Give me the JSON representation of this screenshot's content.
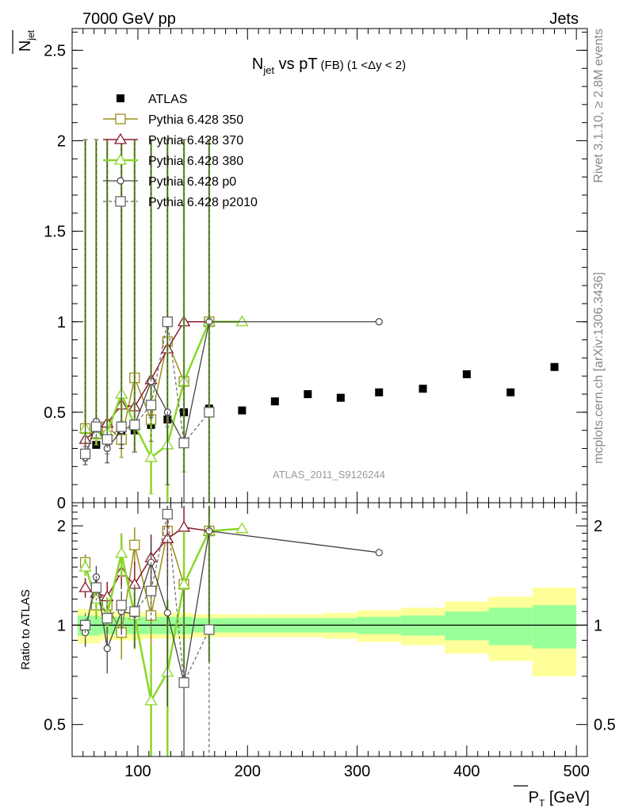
{
  "header": {
    "left": "7000 GeV pp",
    "right": "Jets",
    "side_top": "Rivet 3.1.10, ≥ 2.8M events",
    "side_bottom": "mcplots.cern.ch [arXiv:1306.3436]",
    "watermark": "ATLAS_2011_S9126244"
  },
  "colors": {
    "atlas": "#000000",
    "p350": "#9a8e1c",
    "p370": "#8b1a2b",
    "p380": "#8ad62a",
    "p0": "#444444",
    "p2010": "#666666",
    "band_inner": "#99ff99",
    "band_outer": "#ffff99"
  },
  "chart_data": [
    {
      "type": "scatter",
      "title_main": "N",
      "title_sub": "jet",
      "title_rest": " vs pT",
      "title_small": "(FB) (1 <Δy < 2)",
      "ylabel_main": "N",
      "ylabel_sub": "jet",
      "ylim": [
        0,
        2.62
      ],
      "xlim": [
        40,
        510
      ],
      "yticks": [
        "0.5",
        "1",
        "1.5",
        "2",
        "2.5"
      ],
      "ytick_values": [
        0.5,
        1,
        1.5,
        2,
        2.5
      ],
      "legend": [
        {
          "key": "atlas",
          "label": "ATLAS"
        },
        {
          "key": "p350",
          "label": "Pythia 6.428 350"
        },
        {
          "key": "p370",
          "label": "Pythia 6.428 370"
        },
        {
          "key": "p380",
          "label": "Pythia 6.428 380"
        },
        {
          "key": "p0",
          "label": "Pythia 6.428 p0"
        },
        {
          "key": "p2010",
          "label": "Pythia 6.428 p2010"
        }
      ],
      "series": [
        {
          "key": "atlas",
          "name": "ATLAS",
          "x": [
            52,
            62,
            72,
            85,
            97,
            112,
            127,
            142,
            165,
            195,
            225,
            255,
            285,
            320,
            360,
            400,
            440,
            480
          ],
          "y": [
            0.27,
            0.32,
            0.36,
            0.37,
            0.4,
            0.43,
            0.46,
            0.5,
            0.52,
            0.51,
            0.56,
            0.6,
            0.58,
            0.61,
            0.63,
            0.71,
            0.61,
            0.75
          ]
        },
        {
          "key": "p350",
          "name": "Pythia 6.428 350",
          "x": [
            52,
            62,
            72,
            85,
            97,
            112,
            127,
            142,
            165
          ],
          "y": [
            0.41,
            0.38,
            0.42,
            0.35,
            0.69,
            0.46,
            0.89,
            0.67,
            1.0
          ],
          "err": [
            0.04,
            0.06,
            0.08,
            0.1,
            0.15,
            0.2,
            0.4,
            0.5,
            1.0
          ]
        },
        {
          "key": "p370",
          "name": "Pythia 6.428 370",
          "x": [
            52,
            62,
            72,
            85,
            97,
            112,
            127,
            142,
            165
          ],
          "y": [
            0.35,
            0.4,
            0.44,
            0.54,
            0.53,
            0.68,
            0.85,
            1.0,
            1.0
          ],
          "err": [
            0.04,
            0.06,
            0.08,
            0.1,
            0.15,
            0.2,
            0.4,
            0.5,
            1.0
          ]
        },
        {
          "key": "p380",
          "name": "Pythia 6.428 380",
          "x": [
            52,
            62,
            72,
            85,
            97,
            112,
            127,
            142,
            165,
            195
          ],
          "y": [
            0.41,
            0.38,
            0.39,
            0.6,
            0.43,
            0.25,
            0.32,
            0.67,
            1.0,
            1.0
          ],
          "err": [
            0.04,
            0.06,
            0.08,
            0.15,
            0.15,
            0.2,
            0.35,
            0.5,
            1.0,
            0
          ]
        },
        {
          "key": "p0",
          "name": "Pythia 6.428 p0",
          "x": [
            52,
            62,
            72,
            85,
            97,
            112,
            127,
            142,
            165,
            320
          ],
          "y": [
            0.25,
            0.45,
            0.3,
            0.4,
            0.43,
            0.67,
            0.5,
            0.33,
            1.0,
            1.0
          ],
          "err": [
            0.04,
            0.06,
            0.08,
            0.1,
            0.15,
            0.2,
            0.4,
            0.5,
            1.0,
            0
          ]
        },
        {
          "key": "p2010",
          "name": "Pythia 6.428 p2010",
          "x": [
            52,
            62,
            72,
            85,
            97,
            112,
            127,
            142,
            165
          ],
          "y": [
            0.27,
            0.42,
            0.35,
            0.42,
            0.43,
            0.54,
            1.0,
            0.33,
            0.5
          ],
          "err": [
            0.04,
            0.06,
            0.08,
            0.1,
            0.15,
            0.2,
            0.58,
            0.5,
            1.0
          ]
        }
      ]
    },
    {
      "type": "scatter",
      "ylabel": "Ratio to ATLAS",
      "xlabel_main": "P",
      "xlabel_sub": "T",
      "xlabel_rest": " [GeV]",
      "ylim": [
        0.4,
        2.35
      ],
      "xlim": [
        40,
        510
      ],
      "xticks": [
        "100",
        "200",
        "300",
        "400",
        "500"
      ],
      "xtick_values": [
        100,
        200,
        300,
        400,
        500
      ],
      "yticks": [
        "0.5",
        "1",
        "2"
      ],
      "ytick_values": [
        0.5,
        1,
        2
      ],
      "band_edges": [
        45,
        58,
        66,
        78,
        92,
        104,
        120,
        134,
        150,
        180,
        210,
        240,
        270,
        300,
        340,
        380,
        420,
        460,
        500
      ],
      "band_inner": [
        0.07,
        0.07,
        0.06,
        0.06,
        0.06,
        0.06,
        0.06,
        0.06,
        0.05,
        0.05,
        0.05,
        0.05,
        0.05,
        0.06,
        0.07,
        0.1,
        0.13,
        0.15
      ],
      "band_outer": [
        0.12,
        0.12,
        0.1,
        0.1,
        0.1,
        0.09,
        0.09,
        0.09,
        0.08,
        0.08,
        0.08,
        0.08,
        0.09,
        0.11,
        0.13,
        0.18,
        0.22,
        0.3
      ],
      "series": [
        {
          "key": "p350",
          "x": [
            52,
            62,
            72,
            85,
            97,
            112,
            127,
            142,
            165
          ],
          "y": [
            1.55,
            1.15,
            1.15,
            0.95,
            1.75,
            1.07,
            1.93,
            1.33,
            1.93
          ]
        },
        {
          "key": "p370",
          "x": [
            52,
            62,
            72,
            85,
            97,
            112,
            127,
            142,
            165
          ],
          "y": [
            1.3,
            1.25,
            1.22,
            1.45,
            1.33,
            1.6,
            1.83,
            1.98,
            1.93
          ]
        },
        {
          "key": "p380",
          "x": [
            52,
            62,
            72,
            85,
            97,
            112,
            127,
            142,
            165,
            195
          ],
          "y": [
            1.5,
            1.2,
            1.08,
            1.65,
            1.07,
            0.59,
            0.72,
            1.33,
            1.93,
            1.96
          ]
        },
        {
          "key": "p0",
          "x": [
            52,
            62,
            72,
            85,
            97,
            112,
            127,
            142,
            165,
            320
          ],
          "y": [
            0.95,
            1.4,
            0.85,
            1.1,
            1.08,
            1.55,
            1.09,
            0.67,
            1.93,
            1.66
          ]
        },
        {
          "key": "p2010",
          "x": [
            52,
            62,
            72,
            85,
            97,
            112,
            127,
            142,
            165
          ],
          "y": [
            1.0,
            1.3,
            1.05,
            1.15,
            1.1,
            1.27,
            2.17,
            0.67,
            0.97
          ]
        }
      ]
    }
  ]
}
